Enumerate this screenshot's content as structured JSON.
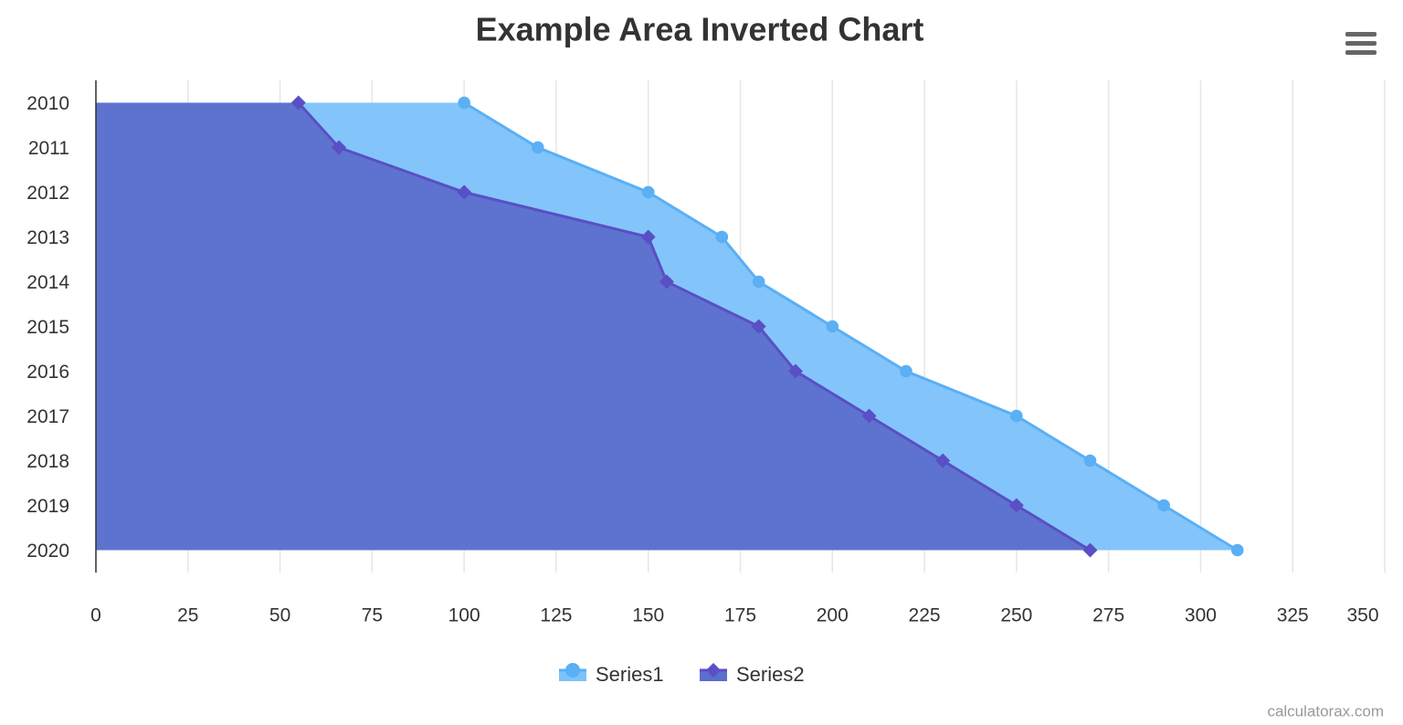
{
  "chart_data": {
    "type": "area",
    "inverted": true,
    "title": "Example Area Inverted Chart",
    "categories": [
      "2010",
      "2011",
      "2012",
      "2013",
      "2014",
      "2015",
      "2016",
      "2017",
      "2018",
      "2019",
      "2020"
    ],
    "series": [
      {
        "name": "Series1",
        "color": "#5aaff5",
        "fill": "#7cc2fa",
        "marker": "circle",
        "values": [
          100,
          120,
          150,
          170,
          180,
          200,
          220,
          250,
          270,
          290,
          310
        ]
      },
      {
        "name": "Series2",
        "color": "#5a4fc4",
        "fill": "#5b6fcc",
        "marker": "diamond",
        "values": [
          55,
          66,
          100,
          150,
          155,
          180,
          190,
          210,
          230,
          250,
          270
        ]
      }
    ],
    "xlim": [
      0,
      350
    ],
    "xticks": [
      0,
      25,
      50,
      75,
      100,
      125,
      150,
      175,
      200,
      225,
      250,
      275,
      300,
      325,
      350
    ],
    "grid": true,
    "legend": "bottom",
    "credits": "calculatorax.com"
  }
}
